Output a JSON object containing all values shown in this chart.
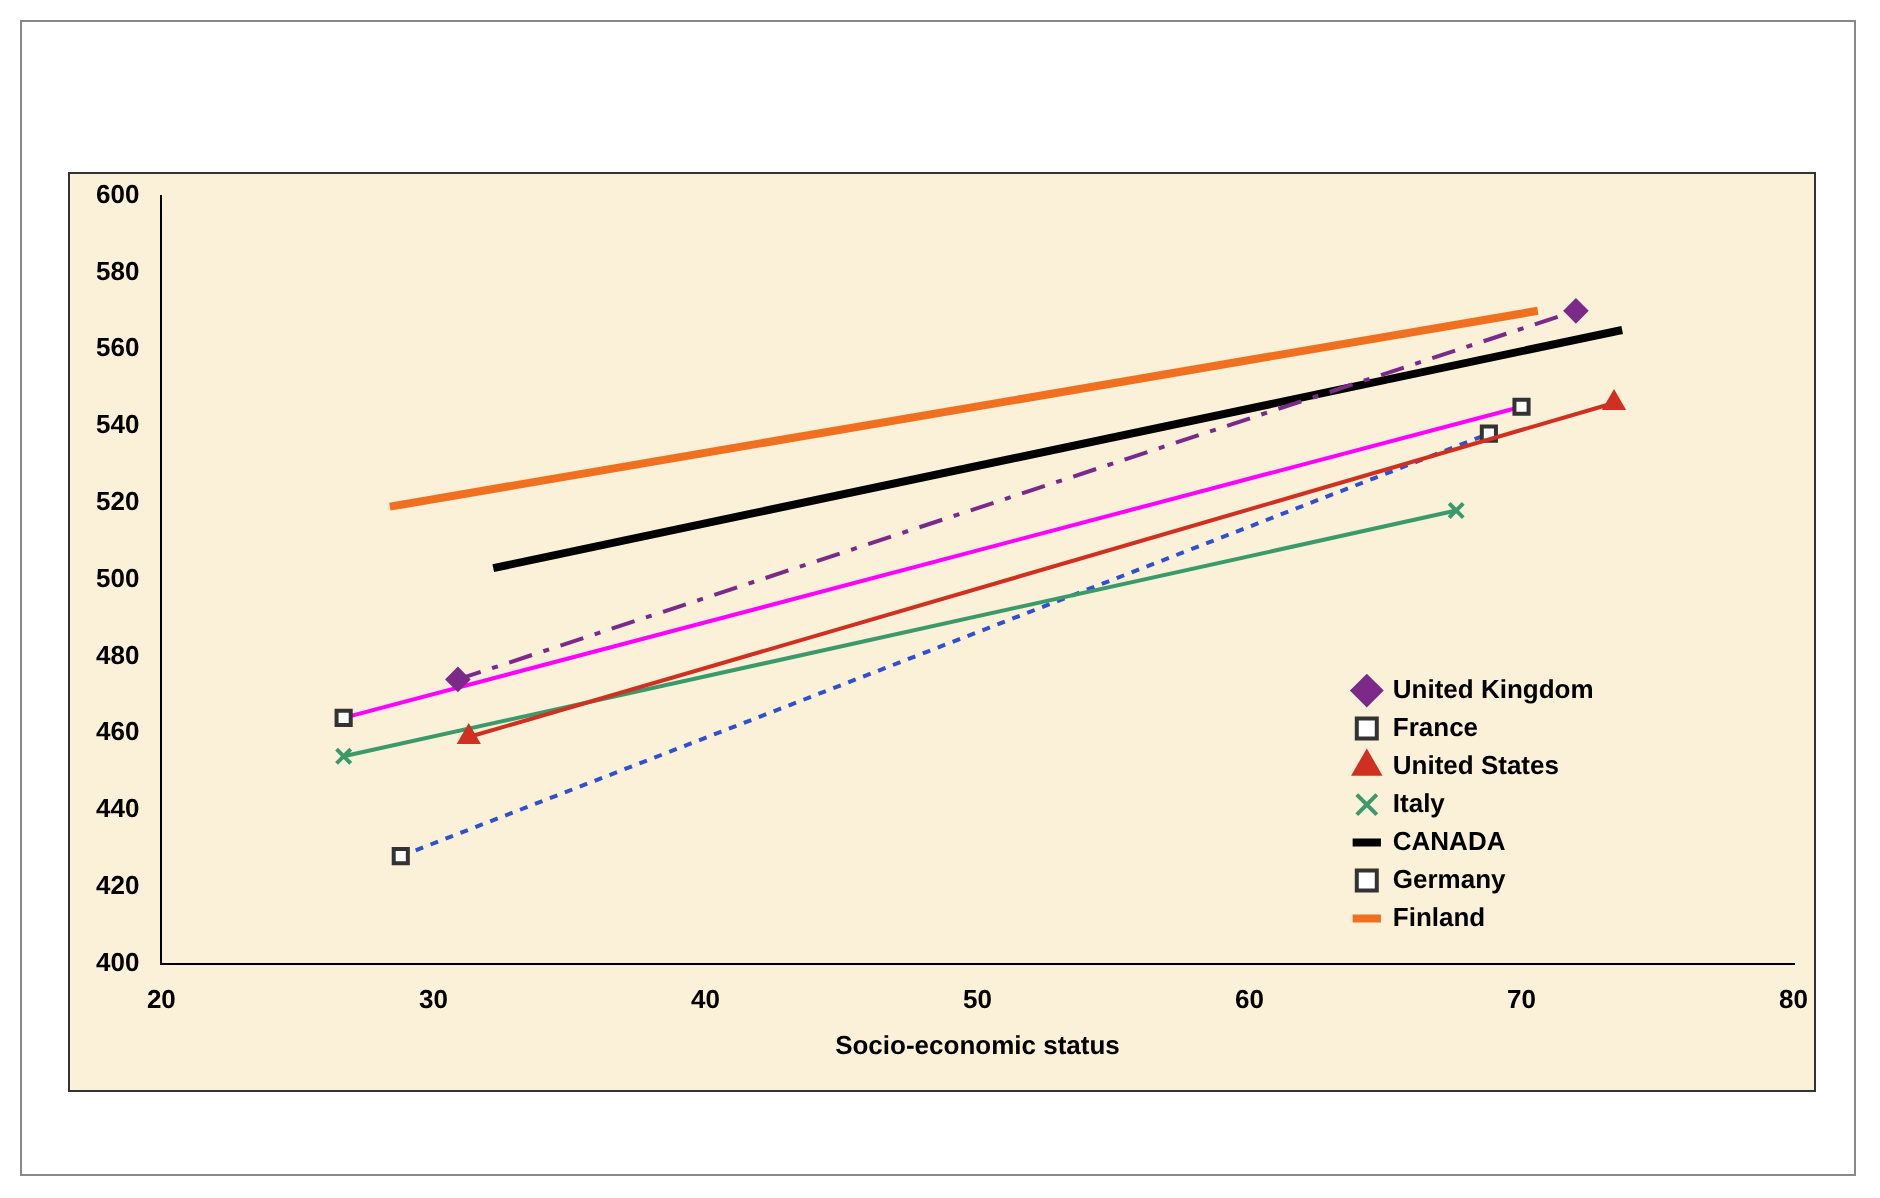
{
  "chart_data": {
    "type": "line",
    "xlabel": "Socio-economic status",
    "xlim": [
      20,
      80
    ],
    "xticks": [
      20,
      30,
      40,
      50,
      60,
      70,
      80
    ],
    "ylim": [
      400,
      600
    ],
    "yticks": [
      400,
      420,
      440,
      460,
      480,
      500,
      520,
      540,
      560,
      580,
      600
    ],
    "grid": false,
    "legend": "bottom right",
    "series": [
      {
        "name": "United Kingdom",
        "color": "#7b2a8a",
        "x": [
          30.9,
          72.0
        ],
        "values": [
          474,
          570
        ],
        "marker": "diamond",
        "line_style": "dashed"
      },
      {
        "name": "France",
        "color": "#ff00ff",
        "x": [
          26.7,
          70.0
        ],
        "values": [
          464,
          545
        ],
        "marker": "square",
        "line_style": "solid"
      },
      {
        "name": "United States",
        "color": "#d03020",
        "x": [
          31.3,
          73.4
        ],
        "values": [
          459,
          546
        ],
        "marker": "triangle",
        "line_style": "solid"
      },
      {
        "name": "Italy",
        "color": "#3a9a6a",
        "x": [
          26.7,
          67.6
        ],
        "values": [
          454,
          518
        ],
        "marker": "cross",
        "line_style": "solid"
      },
      {
        "name": "CANADA",
        "color": "#000000",
        "x": [
          32.2,
          73.7
        ],
        "values": [
          503,
          565
        ],
        "marker": "none",
        "line_style": "solid"
      },
      {
        "name": "Germany",
        "color": "#3050d0",
        "x": [
          28.8,
          68.8
        ],
        "values": [
          428,
          538
        ],
        "marker": "square",
        "line_style": "dotted"
      },
      {
        "name": "Finland",
        "color": "#f07020",
        "x": [
          28.4,
          70.6
        ],
        "values": [
          519,
          570
        ],
        "marker": "none",
        "line_style": "solid"
      }
    ]
  }
}
